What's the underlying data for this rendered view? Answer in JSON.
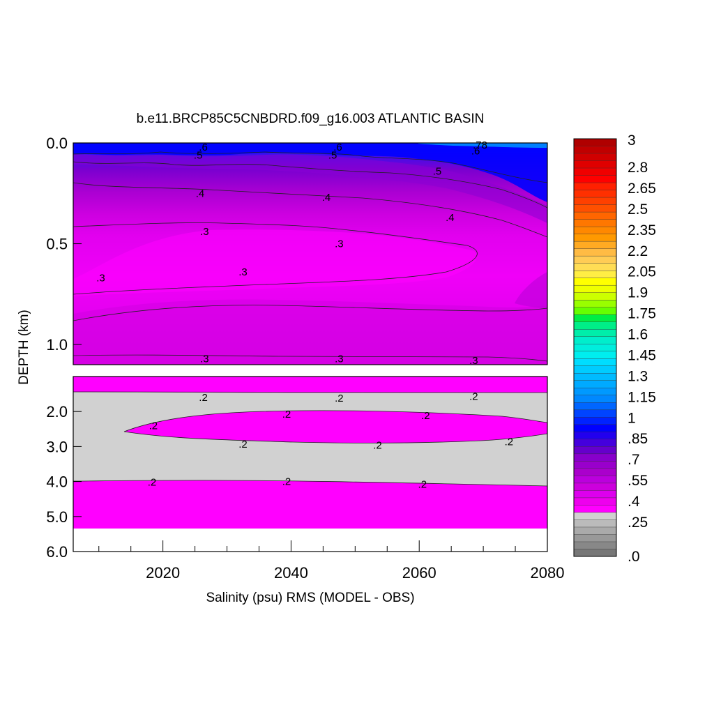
{
  "chart_data": {
    "type": "heatmap",
    "title": "b.e11.BRCP85C5CNBDRD.f09_g16.003 ATLANTIC BASIN",
    "xlabel": "Salinity (psu) RMS (MODEL - OBS)",
    "ylabel": "DEPTH (km)",
    "xlim": [
      2006,
      2080
    ],
    "x_ticks": [
      "2020",
      "2040",
      "2060",
      "2080"
    ],
    "upper_panel": {
      "ylim": [
        0.0,
        1.1
      ],
      "y_ticks": [
        "0.0",
        "0.5",
        "1.0"
      ]
    },
    "lower_panel": {
      "ylim": [
        1.0,
        6.0
      ],
      "y_ticks": [
        "2.0",
        "3.0",
        "4.0",
        "5.0",
        "6.0"
      ]
    },
    "contour_labels_upper": [
      {
        "text": ".6",
        "x": 2026.3,
        "y": 0.02
      },
      {
        "text": ".5",
        "x": 2025.5,
        "y": 0.06
      },
      {
        "text": ".6",
        "x": 2047.3,
        "y": 0.02
      },
      {
        "text": ".5",
        "x": 2046.5,
        "y": 0.06
      },
      {
        "text": ".78",
        "x": 2069.5,
        "y": 0.01
      },
      {
        "text": ".6",
        "x": 2068.8,
        "y": 0.04
      },
      {
        "text": ".5",
        "x": 2062.8,
        "y": 0.14
      },
      {
        "text": ".4",
        "x": 2025.8,
        "y": 0.25
      },
      {
        "text": ".4",
        "x": 2045.5,
        "y": 0.27
      },
      {
        "text": ".4",
        "x": 2064.8,
        "y": 0.37
      },
      {
        "text": ".3",
        "x": 2026.5,
        "y": 0.44
      },
      {
        "text": ".3",
        "x": 2047.5,
        "y": 0.5
      },
      {
        "text": ".3",
        "x": 2032.5,
        "y": 0.64
      },
      {
        "text": ".3",
        "x": 2010.3,
        "y": 0.67
      },
      {
        "text": ".3",
        "x": 2026.5,
        "y": 1.07
      },
      {
        "text": ".3",
        "x": 2047.5,
        "y": 1.07
      },
      {
        "text": ".3",
        "x": 2068.5,
        "y": 1.08
      }
    ],
    "contour_labels_lower": [
      {
        "text": ".2",
        "x": 2026.3,
        "y": 1.6
      },
      {
        "text": ".2",
        "x": 2047.5,
        "y": 1.62
      },
      {
        "text": ".2",
        "x": 2068.5,
        "y": 1.57
      },
      {
        "text": ".2",
        "x": 2039.3,
        "y": 2.08
      },
      {
        "text": ".2",
        "x": 2061.0,
        "y": 2.12
      },
      {
        "text": ".2",
        "x": 2018.5,
        "y": 2.4
      },
      {
        "text": ".2",
        "x": 2032.5,
        "y": 2.93
      },
      {
        "text": ".2",
        "x": 2053.5,
        "y": 2.96
      },
      {
        "text": ".2",
        "x": 2074.0,
        "y": 2.86
      },
      {
        "text": ".2",
        "x": 2018.3,
        "y": 4.02
      },
      {
        "text": ".2",
        "x": 2039.3,
        "y": 4.0
      },
      {
        "text": ".2",
        "x": 2060.5,
        "y": 4.08
      }
    ],
    "colorbar": {
      "labels": [
        "3",
        "2.8",
        "2.65",
        "2.5",
        "2.35",
        "2.2",
        "2.05",
        "1.9",
        "1.75",
        "1.6",
        "1.45",
        "1.3",
        "1.15",
        "1",
        ".85",
        ".7",
        ".55",
        ".4",
        ".25",
        ".0"
      ],
      "levels_top_to_bottom": [
        "#b00000",
        "#c00000",
        "#d00000",
        "#e00000",
        "#f00000",
        "#ff0000",
        "#ff2000",
        "#ff3000",
        "#ff4000",
        "#ff5000",
        "#ff6600",
        "#ff7700",
        "#ff8800",
        "#ff9900",
        "#ffaa22",
        "#ffbb44",
        "#ffcc55",
        "#ffdd55",
        "#ffee44",
        "#ffff00",
        "#eeff00",
        "#ccff00",
        "#99ff00",
        "#66ff00",
        "#00ee44",
        "#00ee88",
        "#00eeaa",
        "#00eecc",
        "#00eedd",
        "#00eeee",
        "#00ddff",
        "#00ccff",
        "#00bbff",
        "#00aaff",
        "#0099ff",
        "#0088ff",
        "#0066ff",
        "#0044ff",
        "#0022ff",
        "#0000ff",
        "#2200ee",
        "#4400dd",
        "#6600cc",
        "#8800cc",
        "#9900cc",
        "#aa00cc",
        "#bb00dd",
        "#cc00dd",
        "#dd00ee",
        "#ee00ee",
        "#ff00ff",
        "#d0d0d0",
        "#bbbbbb",
        "#aaaaaa",
        "#999999",
        "#888888",
        "#777777"
      ]
    },
    "colors": {
      "gray_band": "#d1d1d1",
      "magenta": "#ff00ff"
    }
  }
}
